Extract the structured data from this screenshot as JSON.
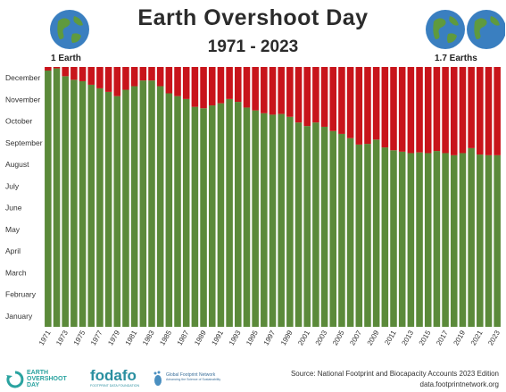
{
  "header": {
    "title": "Earth Overshoot Day",
    "subtitle": "1971 - 2023",
    "left_label": "1 Earth",
    "right_label": "1.7 Earths"
  },
  "footer": {
    "source_line1": "Source: National Footprint and Biocapacity Accounts 2023 Edition",
    "source_line2": "data.footprintnetwork.org",
    "logo1": {
      "line1": "EARTH",
      "line2": "OVERSHOOT",
      "line3": "DAY",
      "icon": "recycle-arrow-icon"
    },
    "logo2": {
      "text": "fodafo",
      "sub": "FOOTPRINT DATA FOUNDATION"
    },
    "logo3": {
      "line1": "Global Footprint Network",
      "line2": "Advancing the Science of Sustainability",
      "icon": "footprint-icon"
    }
  },
  "colors": {
    "green": "#5b8a3a",
    "red": "#c8141b",
    "text": "#2b2b2b"
  },
  "icons": [
    "globe-icon"
  ],
  "chart_data": {
    "type": "bar",
    "stacked": true,
    "ylabel_ticks": [
      "January",
      "February",
      "March",
      "April",
      "May",
      "June",
      "July",
      "August",
      "September",
      "October",
      "November",
      "December"
    ],
    "ylim": [
      0,
      365
    ],
    "x": [
      1971,
      1972,
      1973,
      1974,
      1975,
      1976,
      1977,
      1978,
      1979,
      1980,
      1981,
      1982,
      1983,
      1984,
      1985,
      1986,
      1987,
      1988,
      1989,
      1990,
      1991,
      1992,
      1993,
      1994,
      1995,
      1996,
      1997,
      1998,
      1999,
      2000,
      2001,
      2002,
      2003,
      2004,
      2005,
      2006,
      2007,
      2008,
      2009,
      2010,
      2011,
      2012,
      2013,
      2014,
      2015,
      2016,
      2017,
      2018,
      2019,
      2020,
      2021,
      2022,
      2023
    ],
    "xtick_labels": [
      "1971",
      "1973",
      "1975",
      "1977",
      "1979",
      "1981",
      "1983",
      "1985",
      "1987",
      "1989",
      "1991",
      "1993",
      "1995",
      "1997",
      "1999",
      "2001",
      "2003",
      "2005",
      "2007",
      "2009",
      "2011",
      "2013",
      "2015",
      "2017",
      "2019",
      "2021",
      "2023"
    ],
    "series": [
      {
        "color": "#5b8a3a",
        "values": [
          360,
          363,
          352,
          347,
          345,
          340,
          335,
          330,
          324,
          333,
          338,
          346,
          346,
          338,
          328,
          324,
          320,
          309,
          307,
          311,
          314,
          320,
          316,
          308,
          304,
          300,
          298,
          299,
          295,
          287,
          282,
          287,
          281,
          275,
          271,
          265,
          256,
          257,
          263,
          252,
          248,
          246,
          244,
          245,
          244,
          247,
          244,
          241,
          244,
          251,
          242,
          241,
          241
        ]
      },
      {
        "color": "#c8141b",
        "values": [
          5,
          2,
          13,
          18,
          20,
          25,
          30,
          35,
          41,
          32,
          27,
          19,
          19,
          27,
          37,
          41,
          45,
          56,
          58,
          54,
          51,
          45,
          49,
          57,
          61,
          65,
          67,
          66,
          70,
          78,
          83,
          78,
          84,
          90,
          94,
          100,
          109,
          108,
          102,
          113,
          117,
          119,
          121,
          120,
          121,
          118,
          121,
          124,
          121,
          114,
          123,
          124,
          124
        ]
      }
    ],
    "grid": false,
    "legend": "none"
  }
}
